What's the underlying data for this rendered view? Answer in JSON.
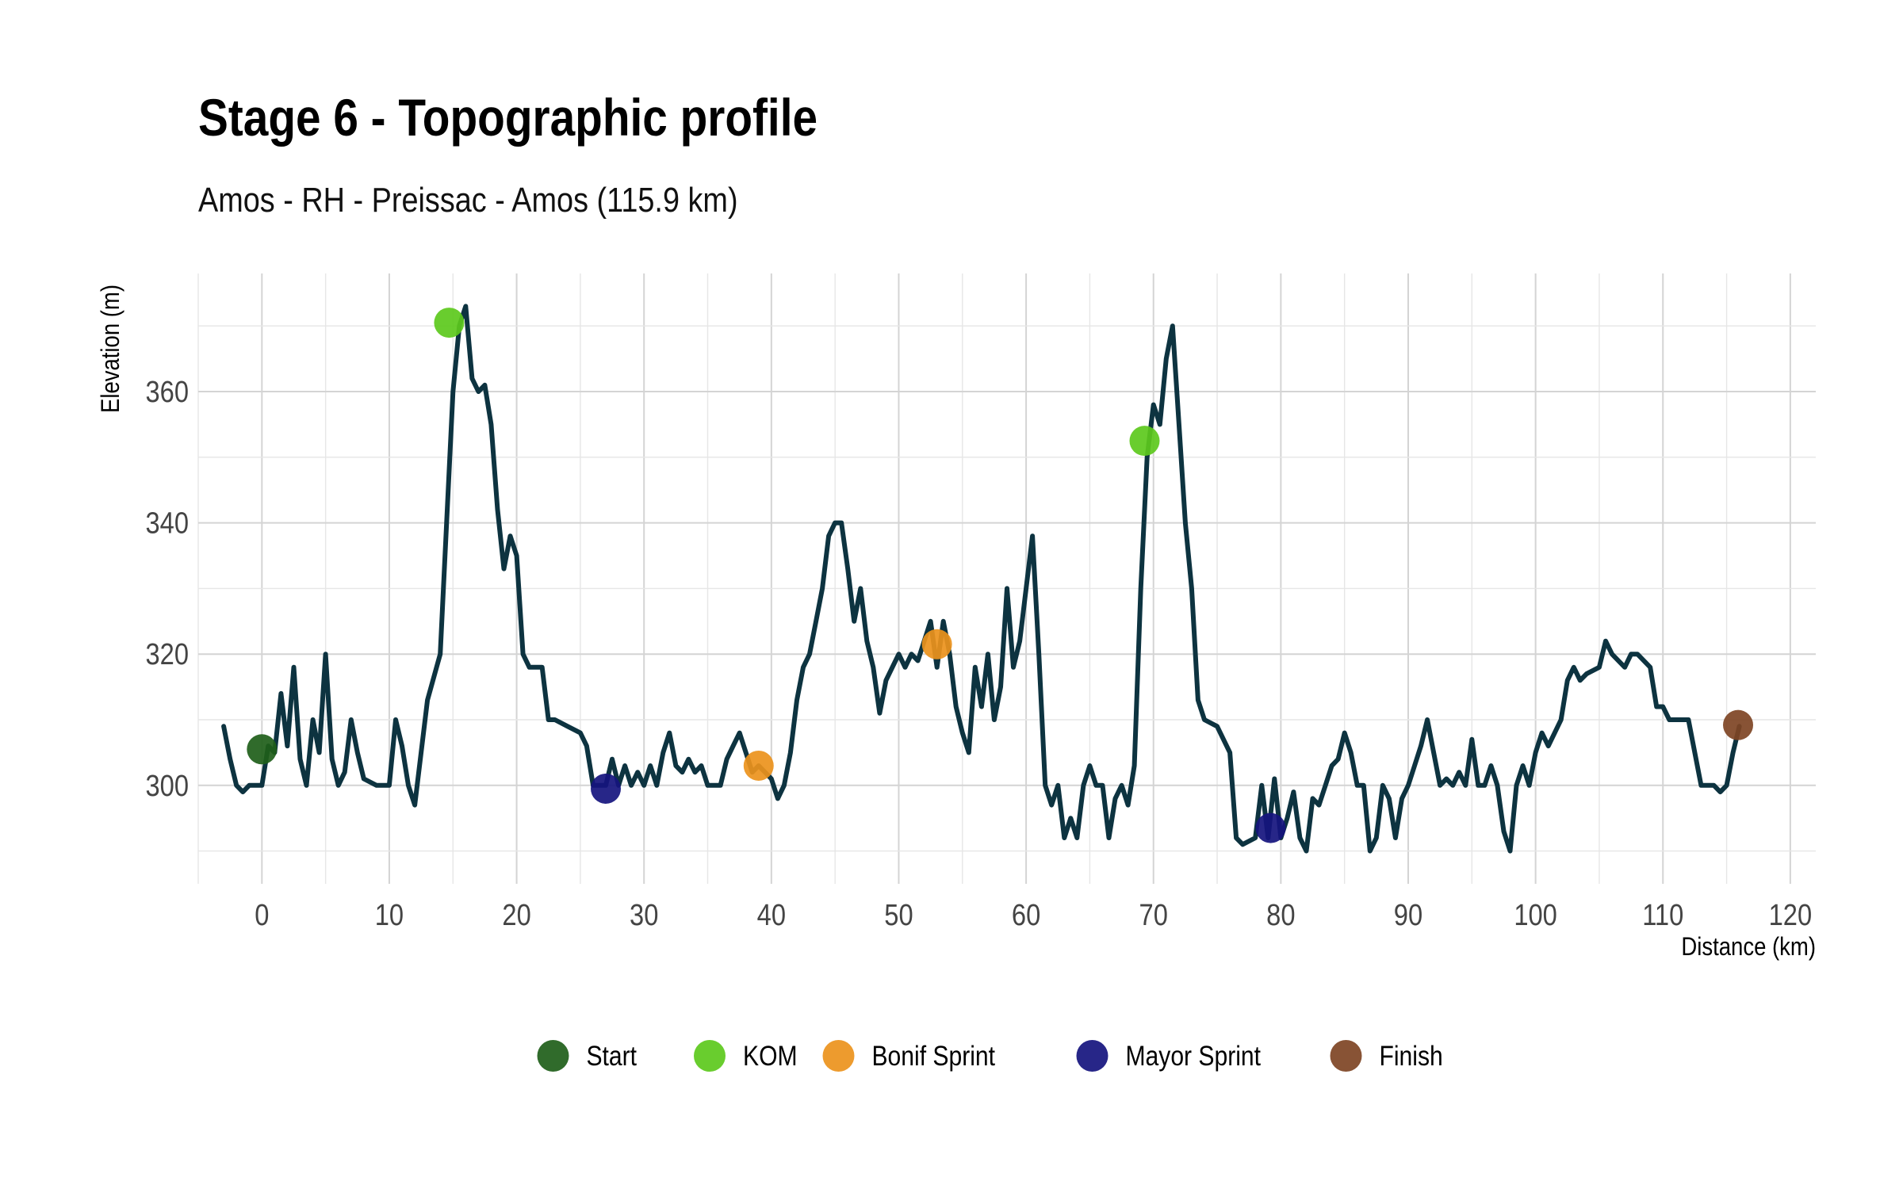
{
  "chart_data": {
    "type": "line",
    "title": "Stage 6 - Topographic profile",
    "subtitle": "Amos - RH - Preissac - Amos (115.9 km)",
    "xlabel": "Distance (km)",
    "ylabel": "Elevation (m)",
    "xlim": [
      -5,
      122
    ],
    "ylim": [
      285,
      378
    ],
    "x_ticks": [
      0,
      10,
      20,
      30,
      40,
      50,
      60,
      70,
      80,
      90,
      100,
      110,
      120
    ],
    "y_ticks": [
      300,
      320,
      340,
      360
    ],
    "grid": true,
    "line_color": "#0d3340",
    "series": [
      {
        "points": [
          [
            -3,
            309
          ],
          [
            -2.5,
            304
          ],
          [
            -2,
            300
          ],
          [
            -1.5,
            299
          ],
          [
            -1,
            300
          ],
          [
            0,
            300
          ],
          [
            0.5,
            306
          ],
          [
            1,
            305
          ],
          [
            1.5,
            314
          ],
          [
            2,
            306
          ],
          [
            2.5,
            318
          ],
          [
            3,
            304
          ],
          [
            3.5,
            300
          ],
          [
            4,
            310
          ],
          [
            4.5,
            305
          ],
          [
            5,
            320
          ],
          [
            5.5,
            304
          ],
          [
            6,
            300
          ],
          [
            6.5,
            302
          ],
          [
            7,
            310
          ],
          [
            7.5,
            305
          ],
          [
            8,
            301
          ],
          [
            9,
            300
          ],
          [
            10,
            300
          ],
          [
            10.5,
            310
          ],
          [
            11,
            306
          ],
          [
            11.5,
            300
          ],
          [
            12,
            297
          ],
          [
            12.5,
            305
          ],
          [
            13,
            313
          ],
          [
            14,
            320
          ],
          [
            15,
            360
          ],
          [
            15.5,
            370
          ],
          [
            16,
            373
          ],
          [
            16.5,
            362
          ],
          [
            17,
            360
          ],
          [
            17.5,
            361
          ],
          [
            18,
            355
          ],
          [
            18.5,
            342
          ],
          [
            19,
            333
          ],
          [
            19.5,
            338
          ],
          [
            20,
            335
          ],
          [
            20.5,
            320
          ],
          [
            21,
            318
          ],
          [
            21.5,
            318
          ],
          [
            22,
            318
          ],
          [
            22.5,
            310
          ],
          [
            23,
            310
          ],
          [
            24,
            309
          ],
          [
            25,
            308
          ],
          [
            25.5,
            306
          ],
          [
            26,
            300
          ],
          [
            27,
            300
          ],
          [
            27.5,
            304
          ],
          [
            28,
            300
          ],
          [
            28.5,
            303
          ],
          [
            29,
            300
          ],
          [
            29.5,
            302
          ],
          [
            30,
            300
          ],
          [
            30.5,
            303
          ],
          [
            31,
            300
          ],
          [
            31.5,
            305
          ],
          [
            32,
            308
          ],
          [
            32.5,
            303
          ],
          [
            33,
            302
          ],
          [
            33.5,
            304
          ],
          [
            34,
            302
          ],
          [
            34.5,
            303
          ],
          [
            35,
            300
          ],
          [
            36,
            300
          ],
          [
            36.5,
            304
          ],
          [
            37,
            306
          ],
          [
            37.5,
            308
          ],
          [
            38,
            305
          ],
          [
            38.5,
            302
          ],
          [
            39,
            303
          ],
          [
            39.5,
            302
          ],
          [
            40,
            301
          ],
          [
            40.5,
            298
          ],
          [
            41,
            300
          ],
          [
            41.5,
            305
          ],
          [
            42,
            313
          ],
          [
            42.5,
            318
          ],
          [
            43,
            320
          ],
          [
            43.5,
            325
          ],
          [
            44,
            330
          ],
          [
            44.5,
            338
          ],
          [
            45,
            340
          ],
          [
            45.5,
            340
          ],
          [
            46,
            333
          ],
          [
            46.5,
            325
          ],
          [
            47,
            330
          ],
          [
            47.5,
            322
          ],
          [
            48,
            318
          ],
          [
            48.5,
            311
          ],
          [
            49,
            316
          ],
          [
            49.5,
            318
          ],
          [
            50,
            320
          ],
          [
            50.5,
            318
          ],
          [
            51,
            320
          ],
          [
            51.5,
            319
          ],
          [
            52,
            322
          ],
          [
            52.5,
            325
          ],
          [
            53,
            318
          ],
          [
            53.5,
            325
          ],
          [
            54,
            320
          ],
          [
            54.5,
            312
          ],
          [
            55,
            308
          ],
          [
            55.5,
            305
          ],
          [
            56,
            318
          ],
          [
            56.5,
            312
          ],
          [
            57,
            320
          ],
          [
            57.5,
            310
          ],
          [
            58,
            315
          ],
          [
            58.5,
            330
          ],
          [
            59,
            318
          ],
          [
            59.5,
            322
          ],
          [
            60,
            330
          ],
          [
            60.5,
            338
          ],
          [
            61,
            320
          ],
          [
            61.5,
            300
          ],
          [
            62,
            297
          ],
          [
            62.5,
            300
          ],
          [
            63,
            292
          ],
          [
            63.5,
            295
          ],
          [
            64,
            292
          ],
          [
            64.5,
            300
          ],
          [
            65,
            303
          ],
          [
            65.5,
            300
          ],
          [
            66,
            300
          ],
          [
            66.5,
            292
          ],
          [
            67,
            298
          ],
          [
            67.5,
            300
          ],
          [
            68,
            297
          ],
          [
            68.5,
            303
          ],
          [
            69,
            330
          ],
          [
            69.5,
            350
          ],
          [
            70,
            358
          ],
          [
            70.5,
            355
          ],
          [
            71,
            365
          ],
          [
            71.5,
            370
          ],
          [
            72,
            355
          ],
          [
            72.5,
            340
          ],
          [
            73,
            330
          ],
          [
            73.5,
            313
          ],
          [
            74,
            310
          ],
          [
            75,
            309
          ],
          [
            76,
            305
          ],
          [
            76.5,
            292
          ],
          [
            77,
            291
          ],
          [
            78,
            292
          ],
          [
            78.5,
            300
          ],
          [
            79,
            292
          ],
          [
            79.5,
            301
          ],
          [
            80,
            292
          ],
          [
            80.5,
            295
          ],
          [
            81,
            299
          ],
          [
            81.5,
            292
          ],
          [
            82,
            290
          ],
          [
            82.5,
            298
          ],
          [
            83,
            297
          ],
          [
            83.5,
            300
          ],
          [
            84,
            303
          ],
          [
            84.5,
            304
          ],
          [
            85,
            308
          ],
          [
            85.5,
            305
          ],
          [
            86,
            300
          ],
          [
            86.5,
            300
          ],
          [
            87,
            290
          ],
          [
            87.5,
            292
          ],
          [
            88,
            300
          ],
          [
            88.5,
            298
          ],
          [
            89,
            292
          ],
          [
            89.5,
            298
          ],
          [
            90,
            300
          ],
          [
            90.5,
            303
          ],
          [
            91,
            306
          ],
          [
            91.5,
            310
          ],
          [
            92,
            305
          ],
          [
            92.5,
            300
          ],
          [
            93,
            301
          ],
          [
            93.5,
            300
          ],
          [
            94,
            302
          ],
          [
            94.5,
            300
          ],
          [
            95,
            307
          ],
          [
            95.5,
            300
          ],
          [
            96,
            300
          ],
          [
            96.5,
            303
          ],
          [
            97,
            300
          ],
          [
            97.5,
            293
          ],
          [
            98,
            290
          ],
          [
            98.5,
            300
          ],
          [
            99,
            303
          ],
          [
            99.5,
            300
          ],
          [
            100,
            305
          ],
          [
            100.5,
            308
          ],
          [
            101,
            306
          ],
          [
            101.5,
            308
          ],
          [
            102,
            310
          ],
          [
            102.5,
            316
          ],
          [
            103,
            318
          ],
          [
            103.5,
            316
          ],
          [
            104,
            317
          ],
          [
            105,
            318
          ],
          [
            105.5,
            322
          ],
          [
            106,
            320
          ],
          [
            107,
            318
          ],
          [
            107.5,
            320
          ],
          [
            108,
            320
          ],
          [
            109,
            318
          ],
          [
            109.5,
            312
          ],
          [
            110,
            312
          ],
          [
            110.5,
            310
          ],
          [
            111,
            310
          ],
          [
            112,
            310
          ],
          [
            112.5,
            305
          ],
          [
            113,
            300
          ],
          [
            114,
            300
          ],
          [
            114.5,
            299
          ],
          [
            115,
            300
          ],
          [
            115.5,
            305
          ],
          [
            116,
            309
          ]
        ]
      }
    ],
    "markers": [
      {
        "category": "Start",
        "x": 0,
        "y": 305.5
      },
      {
        "category": "KOM",
        "x": 14.7,
        "y": 370.5
      },
      {
        "category": "Mayor Sprint",
        "x": 27,
        "y": 299.5
      },
      {
        "category": "Bonif Sprint",
        "x": 39,
        "y": 303
      },
      {
        "category": "Bonif Sprint",
        "x": 53,
        "y": 321.5
      },
      {
        "category": "KOM",
        "x": 69.3,
        "y": 352.5
      },
      {
        "category": "Mayor Sprint",
        "x": 79.2,
        "y": 293.5
      },
      {
        "category": "Finish",
        "x": 115.9,
        "y": 309.2
      }
    ],
    "legend": {
      "placement": "bottom",
      "entries": [
        {
          "label": "Start",
          "color": "#1e5e19"
        },
        {
          "label": "KOM",
          "color": "#5cc91c"
        },
        {
          "label": "Bonif Sprint",
          "color": "#eb921c"
        },
        {
          "label": "Mayor Sprint",
          "color": "#15147e"
        },
        {
          "label": "Finish",
          "color": "#7e4424"
        }
      ]
    }
  }
}
